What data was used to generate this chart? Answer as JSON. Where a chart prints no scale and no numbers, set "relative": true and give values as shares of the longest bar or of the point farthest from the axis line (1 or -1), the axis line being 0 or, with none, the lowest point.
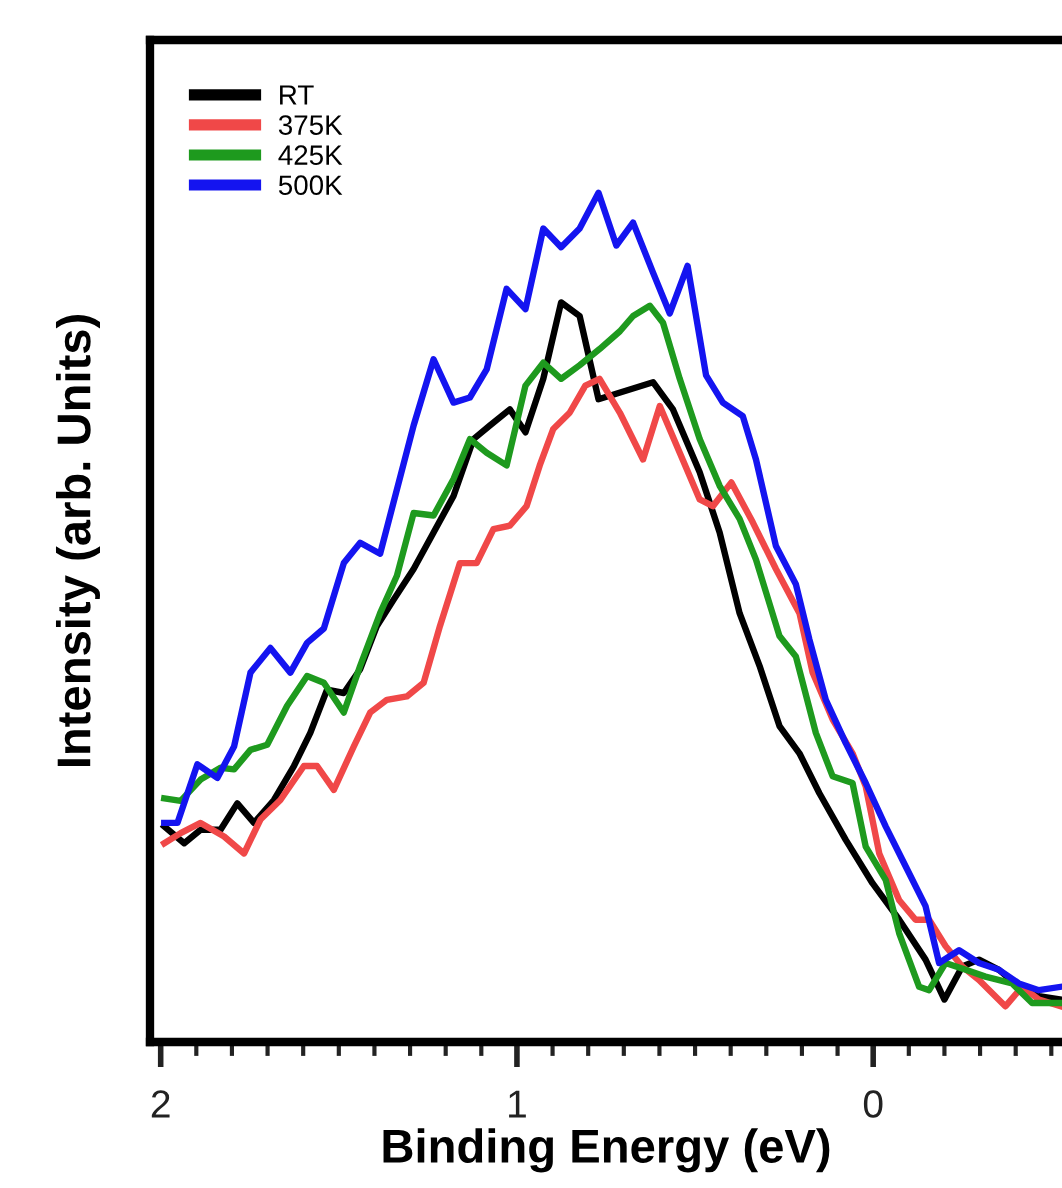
{
  "chart_data": {
    "type": "line",
    "xlabel": "Binding Energy (eV)",
    "ylabel": "Intensity (arb. Units)",
    "relative": true,
    "xlim": [
      2.03,
      -0.53
    ],
    "xticks": [
      2,
      {
        "value": 1.9,
        "label": null
      },
      {
        "value": 1.8,
        "label": null
      },
      {
        "value": 1.7,
        "label": null
      },
      {
        "value": 1.6,
        "label": null
      },
      {
        "value": 1.5,
        "label": null
      },
      {
        "value": 1.4,
        "label": null
      },
      {
        "value": 1.3,
        "label": null
      },
      {
        "value": 1.2,
        "label": null
      },
      {
        "value": 1.1,
        "label": null
      },
      1,
      {
        "value": 0.9,
        "label": null
      },
      {
        "value": 0.8,
        "label": null
      },
      {
        "value": 0.7,
        "label": null
      },
      {
        "value": 0.6,
        "label": null
      },
      {
        "value": 0.5,
        "label": null
      },
      {
        "value": 0.4,
        "label": null
      },
      {
        "value": 0.3,
        "label": null
      },
      {
        "value": 0.2,
        "label": null
      },
      {
        "value": 0.1,
        "label": null
      },
      0,
      {
        "value": -0.1,
        "label": null
      },
      {
        "value": -0.2,
        "label": null
      },
      {
        "value": -0.3,
        "label": null
      },
      {
        "value": -0.4,
        "label": null
      },
      {
        "value": -0.5,
        "label": null
      }
    ],
    "grid": false,
    "legend": "top left",
    "marker": "none",
    "line_style": "solid",
    "series": [
      {
        "name": "RT",
        "color": "#000000",
        "x": [
          1.99,
          1.934,
          1.888,
          1.832,
          1.785,
          1.738,
          1.682,
          1.626,
          1.58,
          1.533,
          1.486,
          1.44,
          1.393,
          1.346,
          1.29,
          1.234,
          1.178,
          1.122,
          1.076,
          1.02,
          0.976,
          0.926,
          0.876,
          0.824,
          0.771,
          0.618,
          0.562,
          0.487,
          0.431,
          0.375,
          0.319,
          0.263,
          0.207,
          0.151,
          0.077,
          0.002,
          -0.073,
          -0.147,
          -0.2,
          -0.25,
          -0.297,
          -0.353,
          -0.409,
          -0.465,
          -0.527
        ],
        "values": [
          0.254,
          0.234,
          0.25,
          0.25,
          0.281,
          0.258,
          0.285,
          0.325,
          0.364,
          0.415,
          0.411,
          0.439,
          0.49,
          0.521,
          0.557,
          0.6,
          0.643,
          0.71,
          0.726,
          0.745,
          0.718,
          0.781,
          0.871,
          0.855,
          0.757,
          0.777,
          0.745,
          0.671,
          0.6,
          0.505,
          0.443,
          0.372,
          0.34,
          0.293,
          0.238,
          0.187,
          0.144,
          0.097,
          0.05,
          0.089,
          0.097,
          0.085,
          0.065,
          0.054,
          0.05
        ]
      },
      {
        "name": "375K",
        "color": "#f04848",
        "x": [
          1.99,
          1.944,
          1.888,
          1.822,
          1.766,
          1.72,
          1.664,
          1.598,
          1.561,
          1.514,
          1.458,
          1.412,
          1.365,
          1.309,
          1.262,
          1.216,
          1.16,
          1.113,
          1.066,
          1.02,
          0.973,
          0.936,
          0.898,
          0.852,
          0.808,
          0.768,
          0.711,
          0.646,
          0.599,
          0.543,
          0.487,
          0.45,
          0.398,
          0.338,
          0.273,
          0.207,
          0.17,
          0.114,
          0.058,
          0.021,
          -0.017,
          -0.073,
          -0.119,
          -0.157,
          -0.203,
          -0.25,
          -0.297,
          -0.371,
          -0.418,
          -0.465,
          -0.527
        ],
        "values": [
          0.234,
          0.246,
          0.258,
          0.242,
          0.222,
          0.262,
          0.285,
          0.325,
          0.325,
          0.297,
          0.348,
          0.388,
          0.403,
          0.407,
          0.423,
          0.49,
          0.564,
          0.564,
          0.604,
          0.608,
          0.631,
          0.679,
          0.722,
          0.741,
          0.773,
          0.781,
          0.741,
          0.686,
          0.749,
          0.694,
          0.639,
          0.631,
          0.659,
          0.612,
          0.557,
          0.505,
          0.435,
          0.38,
          0.34,
          0.301,
          0.222,
          0.167,
          0.144,
          0.144,
          0.113,
          0.089,
          0.073,
          0.042,
          0.065,
          0.05,
          0.042
        ]
      },
      {
        "name": "425K",
        "color": "#1e9a1e",
        "x": [
          1.99,
          1.944,
          1.888,
          1.832,
          1.794,
          1.748,
          1.701,
          1.645,
          1.589,
          1.542,
          1.486,
          1.44,
          1.384,
          1.337,
          1.29,
          1.234,
          1.178,
          1.132,
          1.085,
          1.029,
          0.976,
          0.926,
          0.876,
          0.824,
          0.768,
          0.711,
          0.674,
          0.627,
          0.59,
          0.543,
          0.487,
          0.431,
          0.375,
          0.329,
          0.263,
          0.217,
          0.161,
          0.114,
          0.058,
          0.021,
          -0.035,
          -0.073,
          -0.129,
          -0.157,
          -0.203,
          -0.26,
          -0.315,
          -0.39,
          -0.446,
          -0.527
        ],
        "values": [
          0.287,
          0.284,
          0.309,
          0.323,
          0.321,
          0.344,
          0.35,
          0.396,
          0.431,
          0.423,
          0.388,
          0.443,
          0.505,
          0.549,
          0.623,
          0.62,
          0.663,
          0.71,
          0.694,
          0.679,
          0.773,
          0.8,
          0.781,
          0.797,
          0.816,
          0.837,
          0.855,
          0.867,
          0.847,
          0.781,
          0.71,
          0.655,
          0.616,
          0.568,
          0.478,
          0.454,
          0.364,
          0.313,
          0.305,
          0.23,
          0.191,
          0.128,
          0.065,
          0.061,
          0.093,
          0.085,
          0.077,
          0.069,
          0.046,
          0.046
        ]
      },
      {
        "name": "500K",
        "color": "#1414f0",
        "x": [
          1.99,
          1.953,
          1.897,
          1.841,
          1.794,
          1.748,
          1.692,
          1.636,
          1.589,
          1.542,
          1.486,
          1.44,
          1.384,
          1.29,
          1.234,
          1.178,
          1.132,
          1.085,
          1.029,
          0.976,
          0.926,
          0.876,
          0.824,
          0.771,
          0.721,
          0.674,
          0.618,
          0.571,
          0.521,
          0.469,
          0.422,
          0.366,
          0.329,
          0.273,
          0.217,
          0.179,
          0.133,
          0.077,
          0.021,
          -0.035,
          -0.091,
          -0.147,
          -0.185,
          -0.241,
          -0.297,
          -0.353,
          -0.409,
          -0.465,
          -0.527
        ],
        "values": [
          0.258,
          0.258,
          0.327,
          0.311,
          0.348,
          0.435,
          0.464,
          0.435,
          0.47,
          0.487,
          0.564,
          0.588,
          0.575,
          0.726,
          0.804,
          0.753,
          0.759,
          0.792,
          0.887,
          0.863,
          0.958,
          0.936,
          0.958,
          1.0,
          0.938,
          0.965,
          0.906,
          0.858,
          0.914,
          0.785,
          0.753,
          0.737,
          0.686,
          0.584,
          0.539,
          0.474,
          0.403,
          0.352,
          0.305,
          0.254,
          0.207,
          0.16,
          0.093,
          0.108,
          0.093,
          0.085,
          0.069,
          0.061,
          0.065
        ]
      }
    ]
  }
}
